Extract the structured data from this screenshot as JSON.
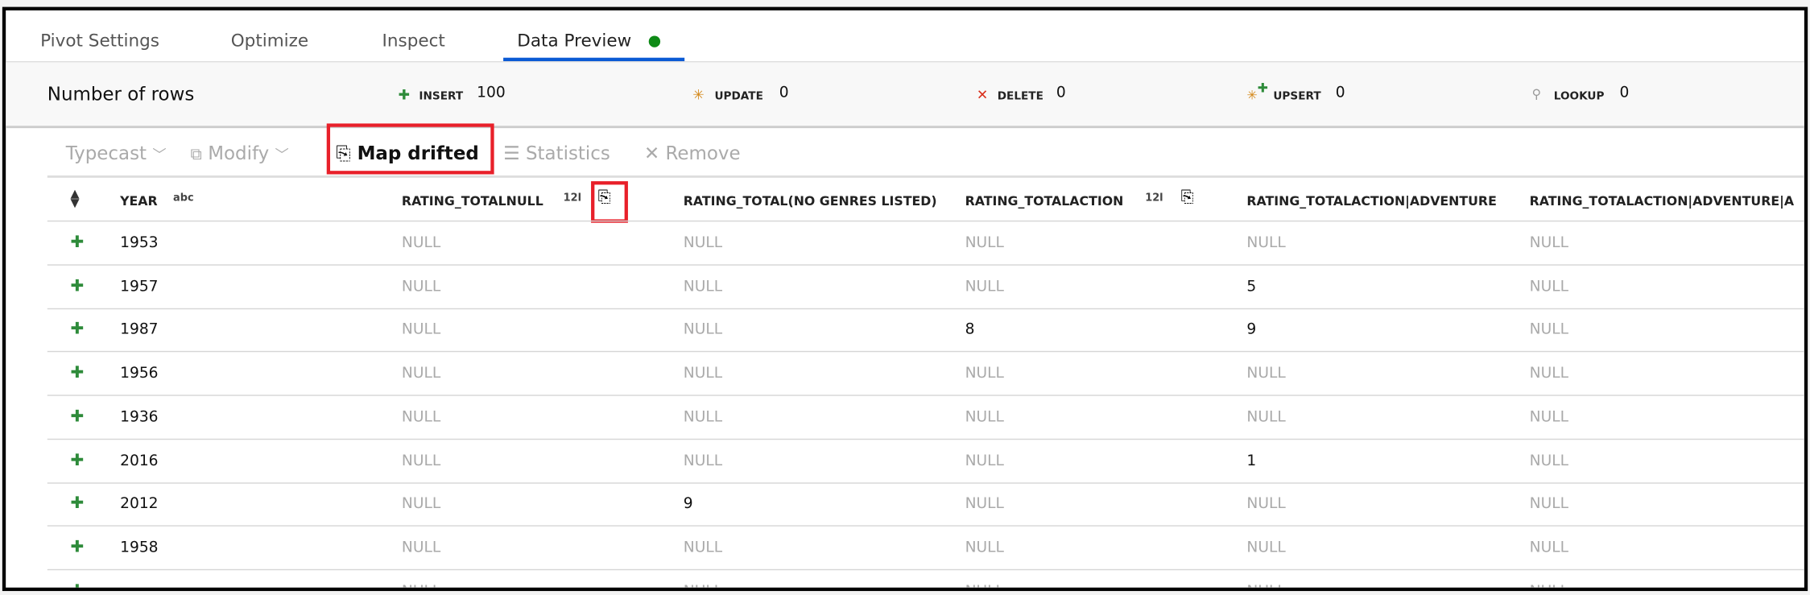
{
  "tabs": [
    {
      "label": "Pivot Settings",
      "active": false
    },
    {
      "label": "Optimize",
      "active": false
    },
    {
      "label": "Inspect",
      "active": false
    },
    {
      "label": "Data Preview",
      "active": true,
      "status_color": "#0e8a16"
    }
  ],
  "summary": {
    "title": "Number of rows",
    "insert": {
      "label": "INSERT",
      "value": "100"
    },
    "update": {
      "label": "UPDATE",
      "value": "0"
    },
    "delete": {
      "label": "DELETE",
      "value": "0"
    },
    "upsert": {
      "label": "UPSERT",
      "value": "0"
    },
    "lookup": {
      "label": "LOOKUP",
      "value": "0"
    }
  },
  "toolbar": {
    "typecast": "Typecast",
    "modify": "Modify",
    "map_drifted": "Map drifted",
    "statistics": "Statistics",
    "remove": "Remove"
  },
  "columns": [
    {
      "name": "YEAR",
      "type": "abc"
    },
    {
      "name": "RATING_TOTALNULL",
      "type": "12l",
      "drifted": true
    },
    {
      "name": "RATING_TOTAL(NO GENRES LISTED)",
      "type": ""
    },
    {
      "name": "RATING_TOTALACTION",
      "type": "12l",
      "drifted": true
    },
    {
      "name": "RATING_TOTALACTION|ADVENTURE",
      "type": ""
    },
    {
      "name": "RATING_TOTALACTION|ADVENTURE|A",
      "type": ""
    }
  ],
  "rows": [
    [
      "1953",
      "NULL",
      "NULL",
      "NULL",
      "NULL",
      "NULL"
    ],
    [
      "1957",
      "NULL",
      "NULL",
      "NULL",
      "5",
      "NULL"
    ],
    [
      "1987",
      "NULL",
      "NULL",
      "8",
      "9",
      "NULL"
    ],
    [
      "1956",
      "NULL",
      "NULL",
      "NULL",
      "NULL",
      "NULL"
    ],
    [
      "1936",
      "NULL",
      "NULL",
      "NULL",
      "NULL",
      "NULL"
    ],
    [
      "2016",
      "NULL",
      "NULL",
      "NULL",
      "1",
      "NULL"
    ],
    [
      "2012",
      "NULL",
      "9",
      "NULL",
      "NULL",
      "NULL"
    ],
    [
      "1958",
      "NULL",
      "NULL",
      "NULL",
      "NULL",
      "NULL"
    ],
    [
      "",
      "NULL",
      "NULL",
      "NULL",
      "NULL",
      "NULL"
    ]
  ],
  "colors": {
    "accent": "#0a5ad4",
    "insert": "#2e8b3a",
    "update": "#d4891c",
    "delete": "#d9301c",
    "highlight": "#e8202a"
  }
}
